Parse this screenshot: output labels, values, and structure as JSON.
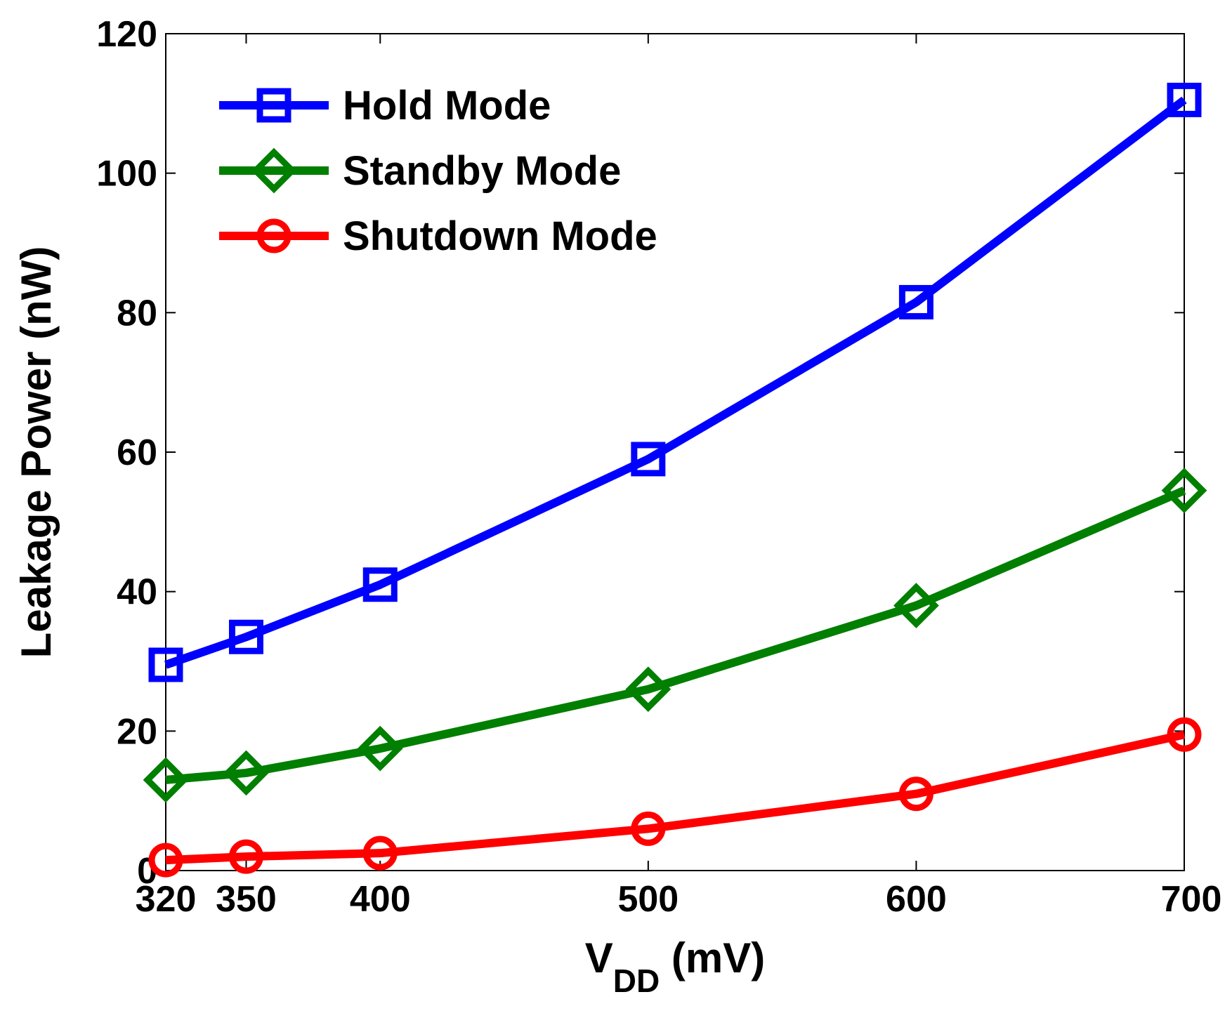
{
  "chart_data": {
    "type": "line",
    "title": "",
    "xlabel_main": "V",
    "xlabel_sub": "DD",
    "xlabel_units": " (mV)",
    "ylabel": "Leakage Power (nW)",
    "x": [
      320,
      350,
      400,
      500,
      600,
      700
    ],
    "xticks": [
      "320",
      "350",
      "400",
      "500",
      "600",
      "700"
    ],
    "yticks": [
      "0",
      "20",
      "40",
      "60",
      "80",
      "100",
      "120"
    ],
    "xlim": [
      320,
      700
    ],
    "ylim": [
      0,
      120
    ],
    "grid": false,
    "legend_position": "top-left",
    "series": [
      {
        "name": "Hold Mode",
        "marker": "square",
        "color": "#0000ff",
        "values": [
          29.5,
          33.5,
          41,
          59,
          81.5,
          110.5
        ]
      },
      {
        "name": "Standby Mode",
        "marker": "diamond",
        "color": "#007f00",
        "values": [
          13,
          14,
          17.5,
          26,
          38,
          54.5
        ]
      },
      {
        "name": "Shutdown Mode",
        "marker": "circle",
        "color": "#ff0000",
        "values": [
          1.5,
          2,
          2.5,
          6,
          11,
          19.5
        ]
      }
    ]
  }
}
